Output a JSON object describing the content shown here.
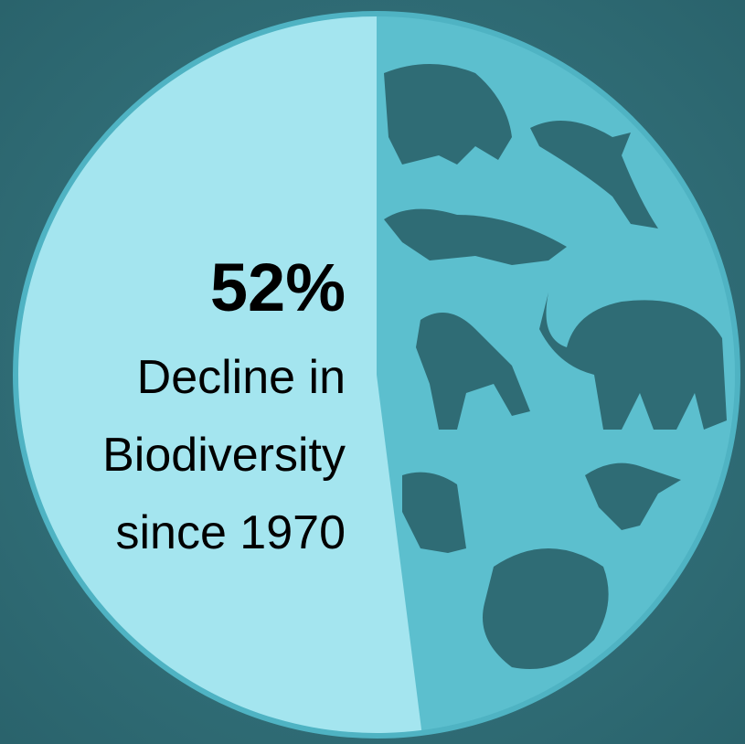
{
  "chart_data": {
    "type": "pie",
    "values": [
      52
    ],
    "value_labels": [
      "52%"
    ],
    "color": "#a4e5ef",
    "annotation": [
      "Decline in",
      "Biodiversity",
      "since 1970"
    ]
  }
}
